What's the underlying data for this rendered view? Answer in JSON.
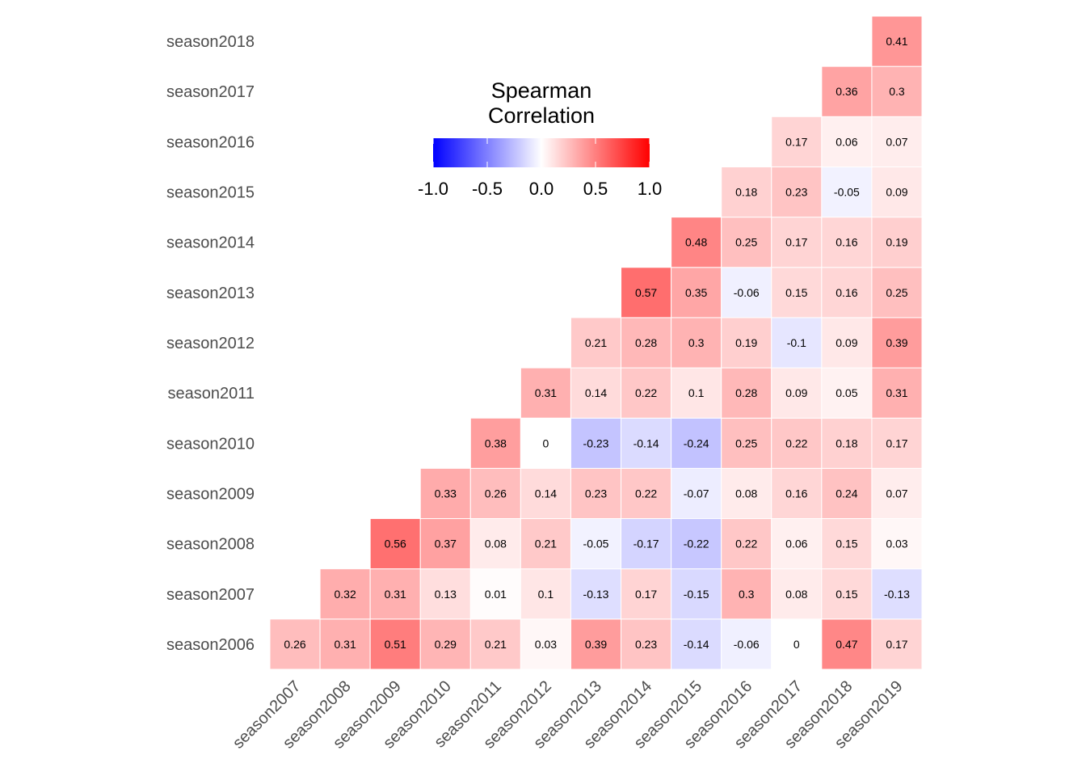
{
  "chart_data": {
    "type": "heatmap",
    "legend": {
      "title_line1": "Spearman",
      "title_line2": "Correlation",
      "range": [
        -1.0,
        1.0
      ],
      "ticks": [
        "-1.0",
        "-0.5",
        "0.0",
        "0.5",
        "1.0"
      ],
      "tick_values": [
        -1.0,
        -0.5,
        0.0,
        0.5,
        1.0
      ],
      "placement": "top-center"
    },
    "colors": {
      "low": "#0000ff",
      "mid": "#ffffff",
      "high": "#ff0000"
    },
    "x_labels": [
      "season2007",
      "season2008",
      "season2009",
      "season2010",
      "season2011",
      "season2012",
      "season2013",
      "season2014",
      "season2015",
      "season2016",
      "season2017",
      "season2018",
      "season2019"
    ],
    "y_labels": [
      "season2006",
      "season2007",
      "season2008",
      "season2009",
      "season2010",
      "season2011",
      "season2012",
      "season2013",
      "season2014",
      "season2015",
      "season2016",
      "season2017",
      "season2018"
    ],
    "values": [
      [
        0.26,
        0.31,
        0.51,
        0.29,
        0.21,
        0.03,
        0.39,
        0.23,
        -0.14,
        -0.06,
        0,
        0.47,
        0.17
      ],
      [
        null,
        0.32,
        0.31,
        0.13,
        0.01,
        0.1,
        -0.13,
        0.17,
        -0.15,
        0.3,
        0.08,
        0.15,
        -0.13
      ],
      [
        null,
        null,
        0.56,
        0.37,
        0.08,
        0.21,
        -0.05,
        -0.17,
        -0.22,
        0.22,
        0.06,
        0.15,
        0.03
      ],
      [
        null,
        null,
        null,
        0.33,
        0.26,
        0.14,
        0.23,
        0.22,
        -0.07,
        0.08,
        0.16,
        0.24,
        0.07
      ],
      [
        null,
        null,
        null,
        null,
        0.38,
        0,
        -0.23,
        -0.14,
        -0.24,
        0.25,
        0.22,
        0.18,
        0.17
      ],
      [
        null,
        null,
        null,
        null,
        null,
        0.31,
        0.14,
        0.22,
        0.1,
        0.28,
        0.09,
        0.05,
        0.31
      ],
      [
        null,
        null,
        null,
        null,
        null,
        null,
        0.21,
        0.28,
        0.3,
        0.19,
        -0.1,
        0.09,
        0.39
      ],
      [
        null,
        null,
        null,
        null,
        null,
        null,
        null,
        0.57,
        0.35,
        -0.06,
        0.15,
        0.16,
        0.25
      ],
      [
        null,
        null,
        null,
        null,
        null,
        null,
        null,
        null,
        0.48,
        0.25,
        0.17,
        0.16,
        0.19
      ],
      [
        null,
        null,
        null,
        null,
        null,
        null,
        null,
        null,
        null,
        0.18,
        0.23,
        -0.05,
        0.09
      ],
      [
        null,
        null,
        null,
        null,
        null,
        null,
        null,
        null,
        null,
        null,
        0.17,
        0.06,
        0.07
      ],
      [
        null,
        null,
        null,
        null,
        null,
        null,
        null,
        null,
        null,
        null,
        null,
        0.36,
        0.3
      ],
      [
        null,
        null,
        null,
        null,
        null,
        null,
        null,
        null,
        null,
        null,
        null,
        null,
        0.41
      ]
    ]
  }
}
